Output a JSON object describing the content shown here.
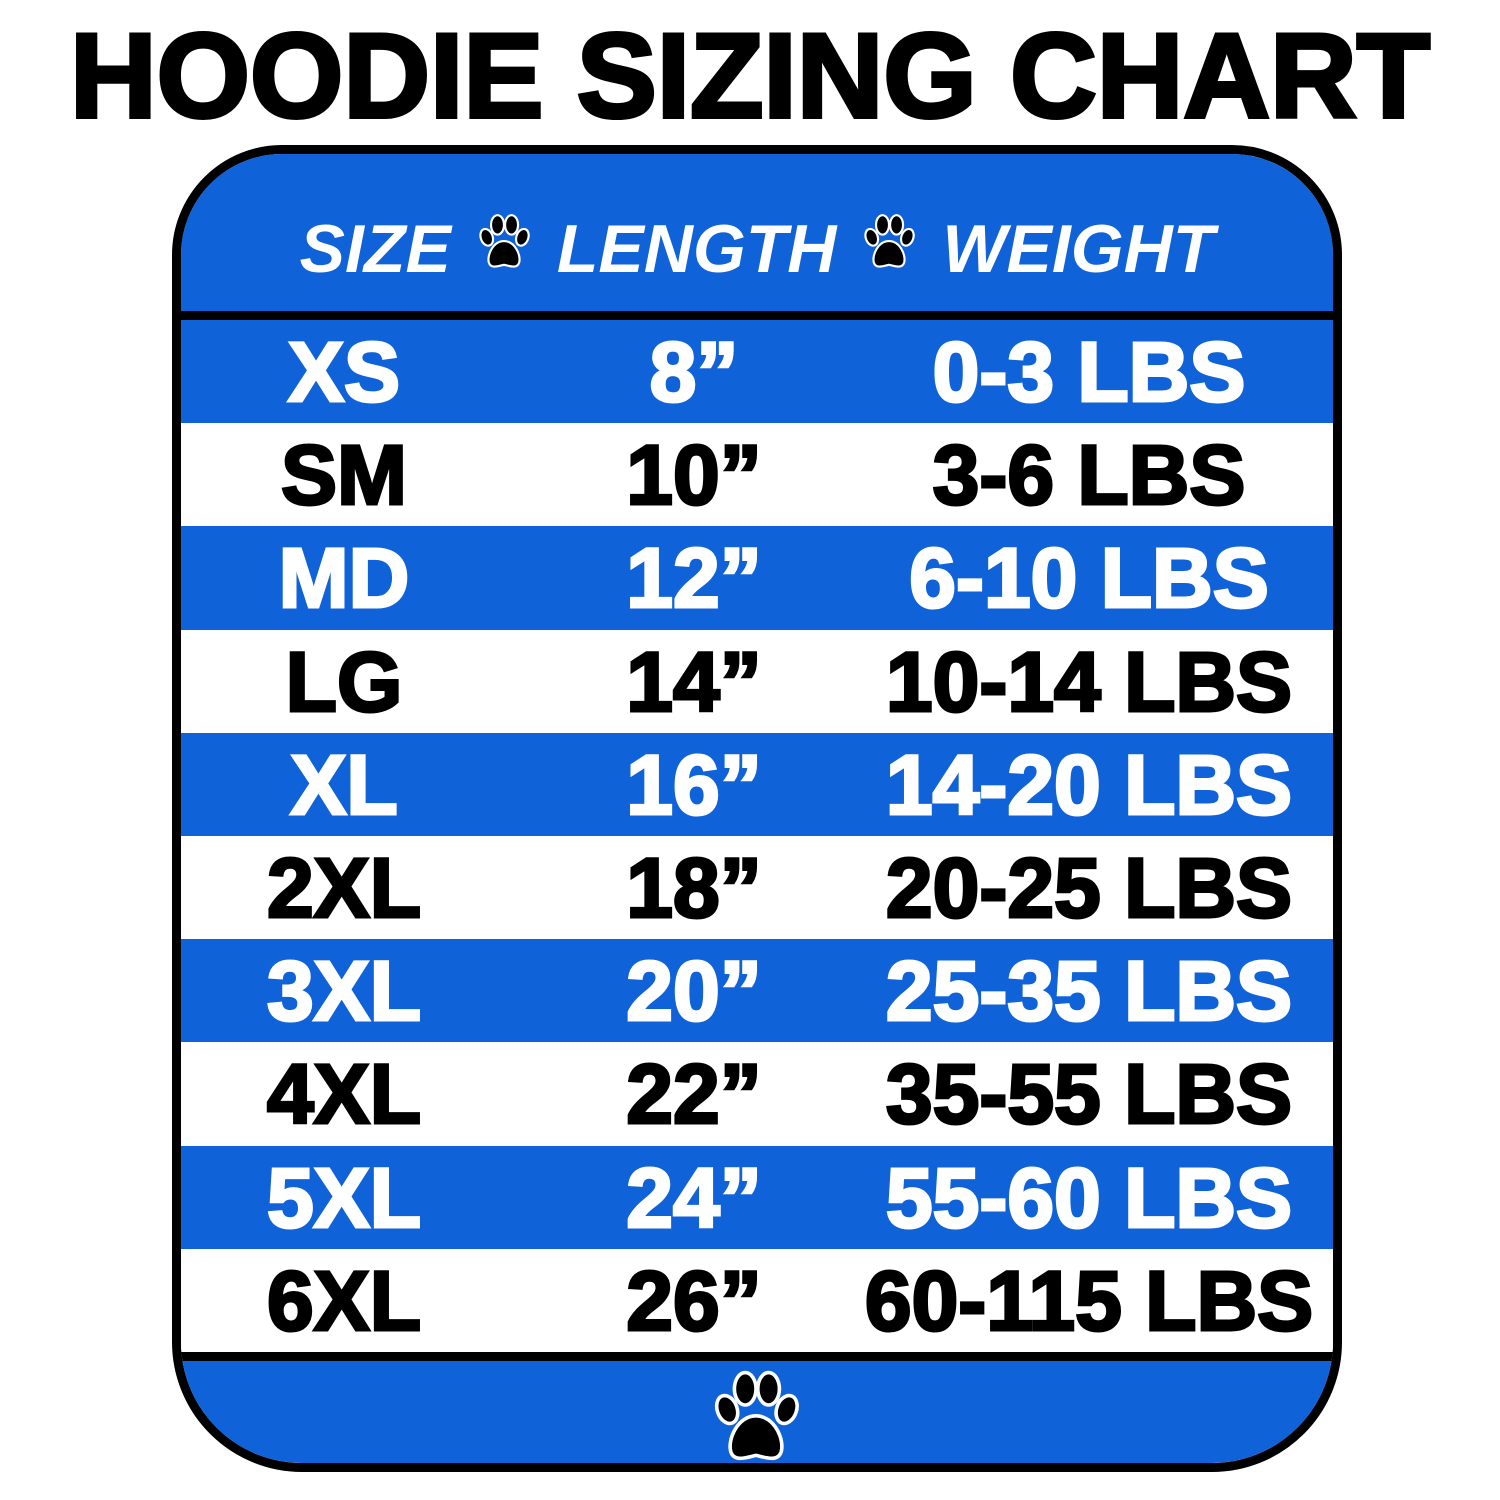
{
  "title": "HOODIE SIZING CHART",
  "colors": {
    "blue": "#0f62d8",
    "border": "#000000"
  },
  "header": {
    "size": "SIZE",
    "length": "LENGTH",
    "weight": "WEIGHT",
    "separator_icon": "paw-print-icon"
  },
  "rows": [
    {
      "size": "XS",
      "length": "8”",
      "weight": "0-3 LBS",
      "style": "blue"
    },
    {
      "size": "SM",
      "length": "10”",
      "weight": "3-6 LBS",
      "style": "white"
    },
    {
      "size": "MD",
      "length": "12”",
      "weight": "6-10 LBS",
      "style": "blue"
    },
    {
      "size": "LG",
      "length": "14”",
      "weight": "10-14 LBS",
      "style": "white"
    },
    {
      "size": "XL",
      "length": "16”",
      "weight": "14-20 LBS",
      "style": "blue"
    },
    {
      "size": "2XL",
      "length": "18”",
      "weight": "20-25 LBS",
      "style": "white"
    },
    {
      "size": "3XL",
      "length": "20”",
      "weight": "25-35 LBS",
      "style": "blue"
    },
    {
      "size": "4XL",
      "length": "22”",
      "weight": "35-55 LBS",
      "style": "white"
    },
    {
      "size": "5XL",
      "length": "24”",
      "weight": "55-60 LBS",
      "style": "blue"
    },
    {
      "size": "6XL",
      "length": "26”",
      "weight": "60-115 LBS",
      "style": "white"
    }
  ],
  "footer": {
    "icon": "paw-print-icon"
  }
}
